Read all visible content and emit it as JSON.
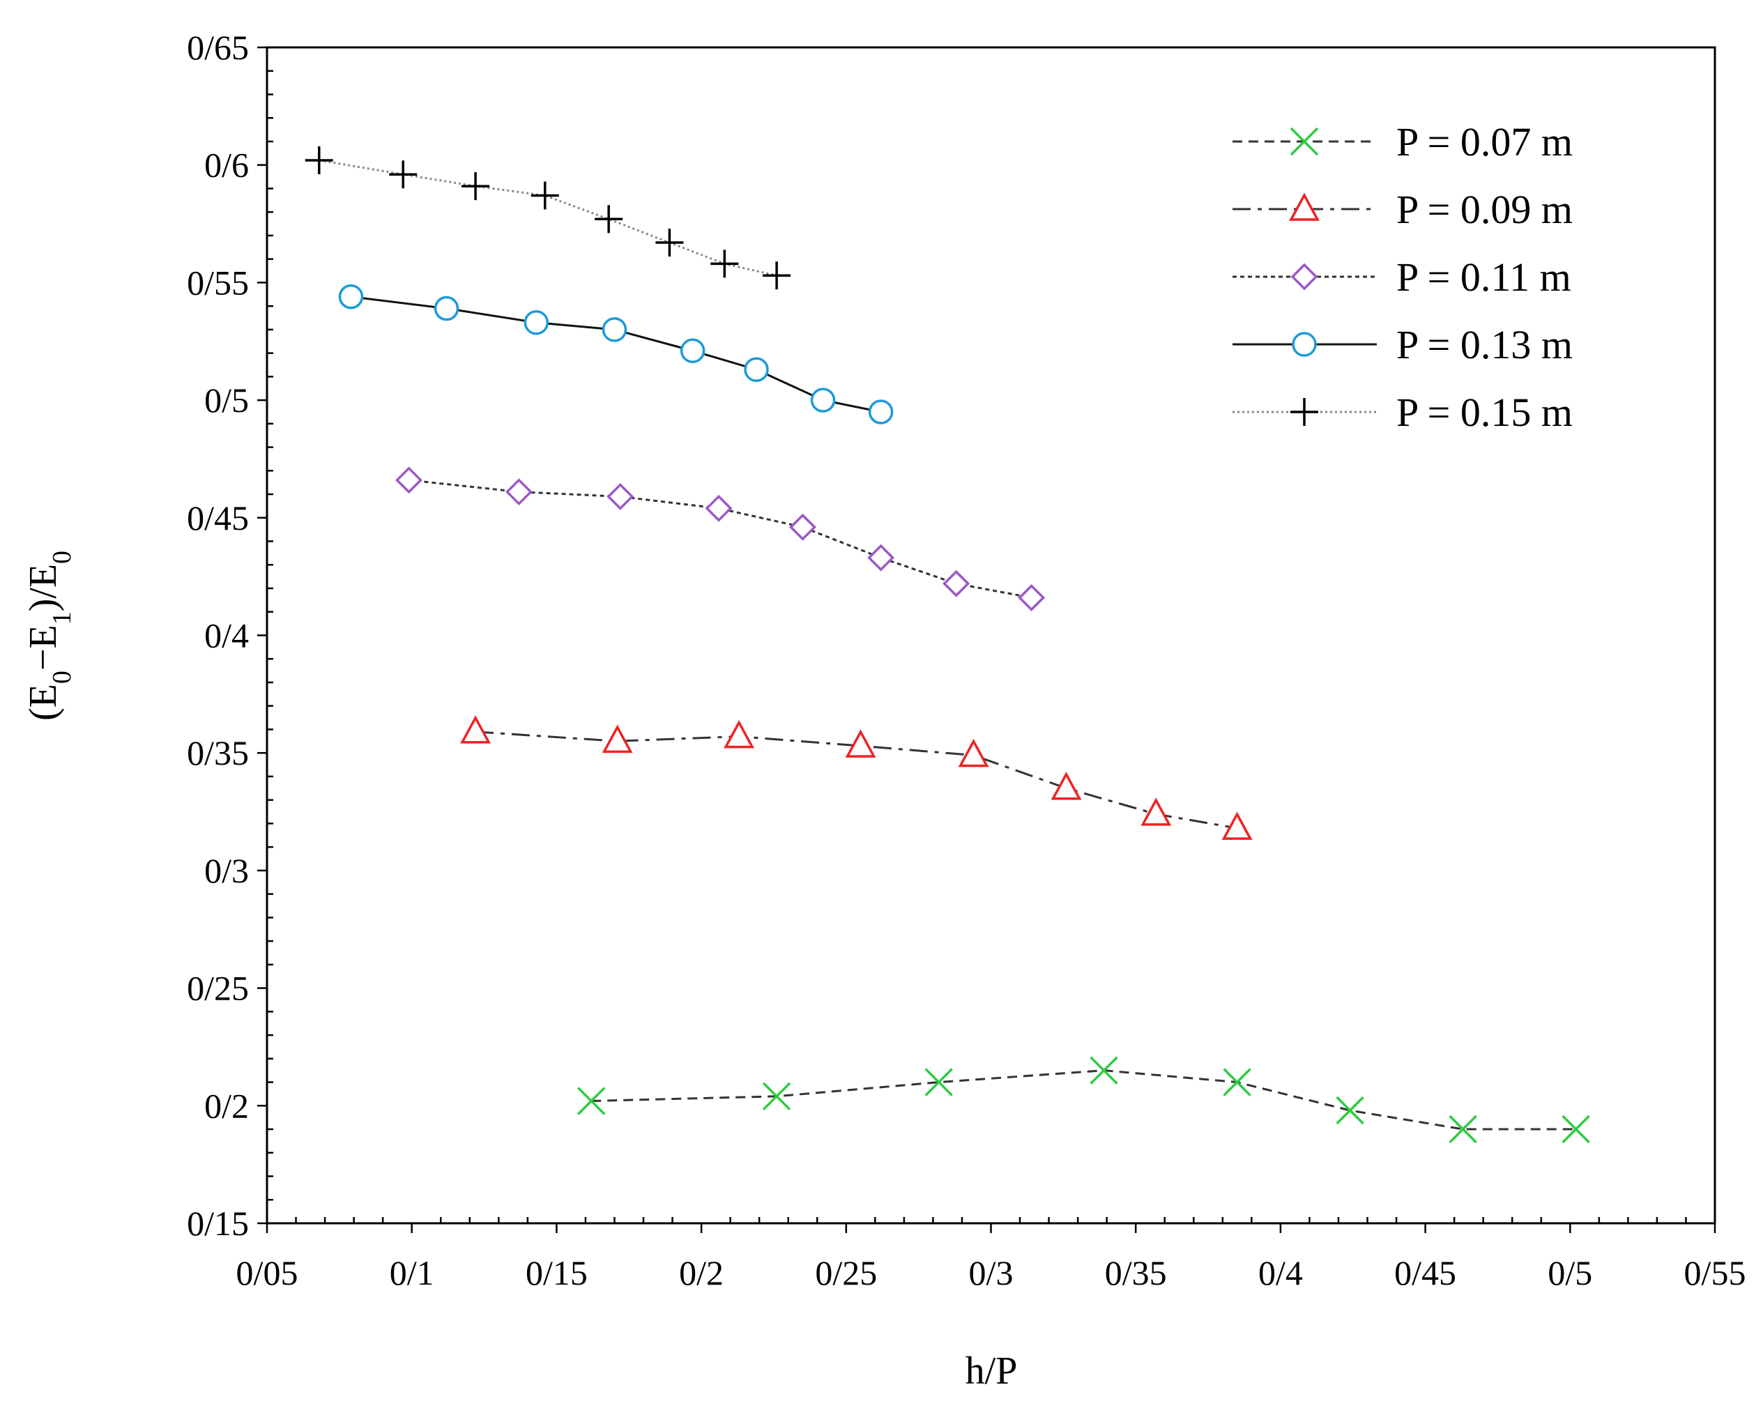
{
  "chart_data": {
    "type": "line",
    "xlabel": "h/P",
    "ylabel": "(E0−E1)/E0",
    "xlim": [
      0.05,
      0.55
    ],
    "ylim": [
      0.15,
      0.65
    ],
    "x_ticks": [
      0.05,
      0.1,
      0.15,
      0.2,
      0.25,
      0.3,
      0.35,
      0.4,
      0.45,
      0.5,
      0.55
    ],
    "x_tick_labels": [
      "0/05",
      "0/1",
      "0/15",
      "0/2",
      "0/25",
      "0/3",
      "0/35",
      "0/4",
      "0/45",
      "0/5",
      "0/55"
    ],
    "y_ticks": [
      0.15,
      0.2,
      0.25,
      0.3,
      0.35,
      0.4,
      0.45,
      0.5,
      0.55,
      0.6,
      0.65
    ],
    "y_tick_labels": [
      "0/15",
      "0/2",
      "0/25",
      "0/3",
      "0/35",
      "0/4",
      "0/45",
      "0/5",
      "0/55",
      "0/6",
      "0/65"
    ],
    "grid": false,
    "legend_position": "top-right",
    "series": [
      {
        "name": "P = 0.07 m",
        "color": "#2ecc40",
        "line_color": "#333333",
        "marker": "x",
        "dash": "dashed",
        "x": [
          0.162,
          0.226,
          0.282,
          0.339,
          0.385,
          0.424,
          0.463,
          0.502
        ],
        "y": [
          0.202,
          0.204,
          0.21,
          0.215,
          0.21,
          0.198,
          0.19,
          0.19
        ]
      },
      {
        "name": "P = 0.09 m",
        "color": "#ee2222",
        "line_color": "#333333",
        "marker": "triangle",
        "dash": "dashdot",
        "x": [
          0.122,
          0.171,
          0.213,
          0.255,
          0.294,
          0.326,
          0.357,
          0.385
        ],
        "y": [
          0.359,
          0.355,
          0.357,
          0.353,
          0.349,
          0.335,
          0.324,
          0.318
        ]
      },
      {
        "name": "P = 0.11 m",
        "color": "#9b59c6",
        "line_color": "#333333",
        "marker": "diamond",
        "dash": "dotted",
        "x": [
          0.099,
          0.137,
          0.172,
          0.206,
          0.235,
          0.262,
          0.288,
          0.314
        ],
        "y": [
          0.466,
          0.461,
          0.459,
          0.454,
          0.446,
          0.433,
          0.422,
          0.416
        ]
      },
      {
        "name": "P = 0.13 m",
        "color": "#1a9bd7",
        "line_color": "#111111",
        "marker": "circle",
        "dash": "solid",
        "x": [
          0.079,
          0.112,
          0.143,
          0.17,
          0.197,
          0.219,
          0.242,
          0.262
        ],
        "y": [
          0.544,
          0.539,
          0.533,
          0.53,
          0.521,
          0.513,
          0.5,
          0.495
        ]
      },
      {
        "name": "P = 0.15 m",
        "color": "#000000",
        "line_color": "#888888",
        "marker": "plus",
        "dash": "fine-dotted",
        "x": [
          0.068,
          0.097,
          0.122,
          0.146,
          0.168,
          0.189,
          0.208,
          0.226
        ],
        "y": [
          0.602,
          0.596,
          0.591,
          0.587,
          0.577,
          0.567,
          0.558,
          0.553
        ]
      }
    ]
  }
}
